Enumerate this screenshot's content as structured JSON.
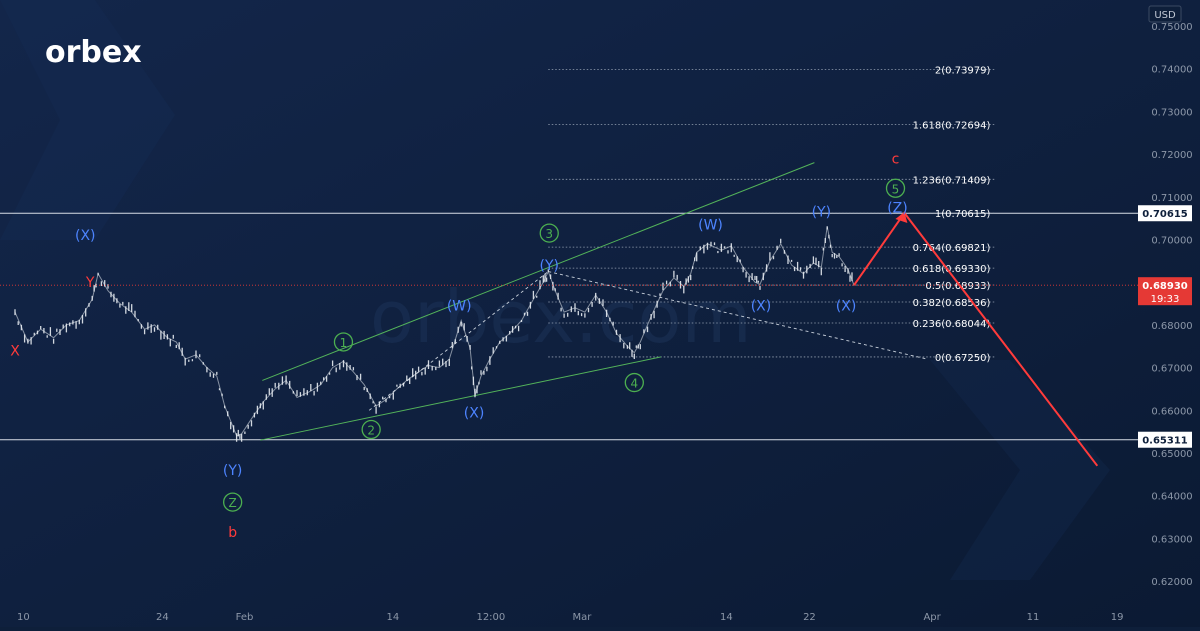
{
  "brand": {
    "logo_text": "orbex",
    "watermark_text": "orbex.com"
  },
  "colors": {
    "background": "#0e1f3a",
    "background_deep": "#0a1830",
    "candle": "#e8ecf2",
    "wave_blue": "#4d84ff",
    "wave_green": "#4caf50",
    "wave_red": "#ff3b3b",
    "channel_green": "#53b35a",
    "price_badge": "#e53935",
    "axis_text": "#8c97a8",
    "fib_text": "#ffffff"
  },
  "chart_data": {
    "type": "line",
    "instrument_currency": "USD",
    "ylim": [
      0.615,
      0.752
    ],
    "y_ticks": [
      0.62,
      0.63,
      0.64,
      0.65,
      0.66,
      0.67,
      0.68,
      0.69,
      0.7,
      0.71,
      0.72,
      0.73,
      0.74,
      0.75
    ],
    "y_tick_labels": [
      "0.62000",
      "0.63000",
      "0.64000",
      "0.65000",
      "0.66000",
      "0.67000",
      "0.68000",
      "0.69000",
      "0.70000",
      "0.71000",
      "0.72000",
      "0.73000",
      "0.74000",
      "0.75000"
    ],
    "x_ticks": [
      {
        "label": "10",
        "t": 0.85
      },
      {
        "label": "24",
        "t": 14.9
      },
      {
        "label": "Feb",
        "t": 23.2
      },
      {
        "label": "14",
        "t": 38.2
      },
      {
        "label": "12:00",
        "t": 48.1
      },
      {
        "label": "Mar",
        "t": 57.3
      },
      {
        "label": "14",
        "t": 71.9
      },
      {
        "label": "22",
        "t": 80.3
      },
      {
        "label": "Apr",
        "t": 92.7
      },
      {
        "label": "11",
        "t": 102.9
      },
      {
        "label": "19",
        "t": 111.4
      }
    ],
    "series": [
      {
        "points": [
          [
            0,
            0.683
          ],
          [
            1.3,
            0.676
          ],
          [
            2.6,
            0.679
          ],
          [
            3.9,
            0.677
          ],
          [
            5.2,
            0.68
          ],
          [
            6.5,
            0.681
          ],
          [
            7.8,
            0.686
          ],
          [
            8.4,
            0.692
          ],
          [
            9.4,
            0.688
          ],
          [
            10.6,
            0.685
          ],
          [
            11.8,
            0.683
          ],
          [
            13.1,
            0.679
          ],
          [
            14.1,
            0.68
          ],
          [
            15.4,
            0.677
          ],
          [
            16.3,
            0.676
          ],
          [
            17.2,
            0.672
          ],
          [
            18.3,
            0.673
          ],
          [
            19.4,
            0.67
          ],
          [
            20.4,
            0.668
          ],
          [
            21.2,
            0.661
          ],
          [
            22.4,
            0.654
          ],
          [
            22.9,
            0.6545
          ],
          [
            23.9,
            0.658
          ],
          [
            25.1,
            0.662
          ],
          [
            26.3,
            0.665
          ],
          [
            27.4,
            0.667
          ],
          [
            28.5,
            0.663
          ],
          [
            29.9,
            0.6645
          ],
          [
            30.9,
            0.666
          ],
          [
            32.1,
            0.67
          ],
          [
            33.2,
            0.6715
          ],
          [
            34.2,
            0.669
          ],
          [
            35.3,
            0.666
          ],
          [
            36.5,
            0.661
          ],
          [
            37.5,
            0.6625
          ],
          [
            38.6,
            0.665
          ],
          [
            39.6,
            0.667
          ],
          [
            40.8,
            0.669
          ],
          [
            41.8,
            0.6705
          ],
          [
            42.9,
            0.67
          ],
          [
            43.9,
            0.672
          ],
          [
            45.1,
            0.681
          ],
          [
            46.0,
            0.6745
          ],
          [
            46.5,
            0.6635
          ],
          [
            47.1,
            0.668
          ],
          [
            48.0,
            0.672
          ],
          [
            49.0,
            0.676
          ],
          [
            50.0,
            0.678
          ],
          [
            51.2,
            0.681
          ],
          [
            52.4,
            0.686
          ],
          [
            53.4,
            0.69
          ],
          [
            53.9,
            0.6925
          ],
          [
            54.6,
            0.688
          ],
          [
            55.5,
            0.683
          ],
          [
            56.6,
            0.684
          ],
          [
            57.6,
            0.683
          ],
          [
            58.7,
            0.687
          ],
          [
            59.8,
            0.683
          ],
          [
            60.8,
            0.678
          ],
          [
            61.9,
            0.675
          ],
          [
            62.6,
            0.6735
          ],
          [
            63.2,
            0.676
          ],
          [
            64.3,
            0.682
          ],
          [
            65.5,
            0.688
          ],
          [
            66.6,
            0.691
          ],
          [
            67.6,
            0.689
          ],
          [
            68.3,
            0.692
          ],
          [
            68.9,
            0.697
          ],
          [
            70.0,
            0.699
          ],
          [
            71.4,
            0.6975
          ],
          [
            72.4,
            0.6985
          ],
          [
            73.6,
            0.6935
          ],
          [
            74.8,
            0.69
          ],
          [
            75.3,
            0.6895
          ],
          [
            76.3,
            0.695
          ],
          [
            77.4,
            0.699
          ],
          [
            78.5,
            0.694
          ],
          [
            79.7,
            0.692
          ],
          [
            80.7,
            0.6945
          ],
          [
            81.5,
            0.6935
          ],
          [
            82.1,
            0.703
          ],
          [
            82.6,
            0.697
          ],
          [
            83.3,
            0.696
          ],
          [
            84.2,
            0.693
          ],
          [
            84.8,
            0.6893
          ]
        ]
      }
    ],
    "projection": [
      [
        84.8,
        0.6893
      ],
      [
        89.9,
        0.7062
      ],
      [
        109.4,
        0.647
      ]
    ],
    "fibonacci": [
      {
        "label": "2(0.73979)",
        "value": 0.73979
      },
      {
        "label": "1.618(0.72694)",
        "value": 0.72694
      },
      {
        "label": "1.236(0.71409)",
        "value": 0.71409
      },
      {
        "label": "1(0.70615)",
        "value": 0.70615
      },
      {
        "label": "0.764(0.69821)",
        "value": 0.69821
      },
      {
        "label": "0.618(0.69330)",
        "value": 0.6933
      },
      {
        "label": "0.5(0.68933)",
        "value": 0.68933
      },
      {
        "label": "0.382(0.68536)",
        "value": 0.68536
      },
      {
        "label": "0.236(0.68044)",
        "value": 0.68044
      },
      {
        "label": "0(0.67250)",
        "value": 0.6725
      }
    ],
    "horizontal_levels": [
      {
        "value": 0.70615,
        "label": "0.70615"
      },
      {
        "value": 0.65311,
        "label": "0.65311"
      }
    ],
    "current_price": {
      "value": 0.6893,
      "label": "0.68930",
      "countdown": "19:33"
    },
    "channel_lines": [
      [
        [
          25.0,
          0.667
        ],
        [
          80.8,
          0.718
        ]
      ],
      [
        [
          24.8,
          0.653
        ],
        [
          65.3,
          0.6725
        ]
      ]
    ],
    "connector_lines": [
      [
        [
          35.8,
          0.66
        ],
        [
          53.9,
          0.6925
        ]
      ],
      [
        [
          53.9,
          0.6925
        ],
        [
          92.2,
          0.672
        ]
      ]
    ],
    "wave_labels": [
      {
        "text": "X",
        "t": 0.0,
        "v": 0.674,
        "color": "red",
        "circled": false
      },
      {
        "text": "(X)",
        "t": 7.1,
        "v": 0.701,
        "color": "blue",
        "circled": false
      },
      {
        "text": "Y",
        "t": 7.6,
        "v": 0.69,
        "color": "red",
        "circled": false
      },
      {
        "text": "(Y)",
        "t": 22.0,
        "v": 0.646,
        "color": "blue",
        "circled": false
      },
      {
        "text": "Z",
        "t": 22.0,
        "v": 0.6385,
        "color": "green",
        "circled": true
      },
      {
        "text": "b",
        "t": 22.0,
        "v": 0.6315,
        "color": "red",
        "circled": false
      },
      {
        "text": "1",
        "t": 33.2,
        "v": 0.676,
        "color": "green",
        "circled": true
      },
      {
        "text": "2",
        "t": 36.0,
        "v": 0.6555,
        "color": "green",
        "circled": true
      },
      {
        "text": "(W)",
        "t": 44.9,
        "v": 0.6845,
        "color": "blue",
        "circled": false
      },
      {
        "text": "(X)",
        "t": 46.4,
        "v": 0.6595,
        "color": "blue",
        "circled": false
      },
      {
        "text": "3",
        "t": 54.0,
        "v": 0.7015,
        "color": "green",
        "circled": true
      },
      {
        "text": "(Y)",
        "t": 54.0,
        "v": 0.694,
        "color": "blue",
        "circled": false
      },
      {
        "text": "4",
        "t": 62.6,
        "v": 0.6665,
        "color": "green",
        "circled": true
      },
      {
        "text": "(W)",
        "t": 70.3,
        "v": 0.7035,
        "color": "blue",
        "circled": false
      },
      {
        "text": "(X)",
        "t": 75.4,
        "v": 0.6845,
        "color": "blue",
        "circled": false
      },
      {
        "text": "(Y)",
        "t": 81.5,
        "v": 0.7065,
        "color": "blue",
        "circled": false
      },
      {
        "text": "(X)",
        "t": 84.0,
        "v": 0.6845,
        "color": "blue",
        "circled": false
      },
      {
        "text": "(Z)",
        "t": 89.2,
        "v": 0.7075,
        "color": "blue",
        "circled": false
      },
      {
        "text": "5",
        "t": 89.0,
        "v": 0.712,
        "color": "green",
        "circled": true
      },
      {
        "text": "c",
        "t": 89.0,
        "v": 0.719,
        "color": "red",
        "circled": false
      }
    ]
  }
}
